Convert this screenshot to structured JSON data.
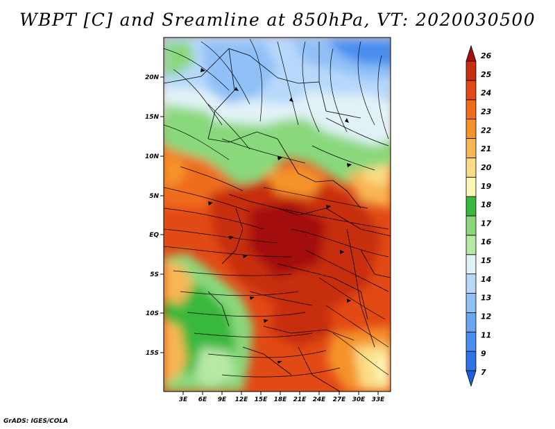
{
  "title": "WBPT [C] and Sreamline at 850hPa, VT: 2020030500",
  "credit": "GrADS: IGES/COLA",
  "map": {
    "field": "WBPT [C]",
    "level": "850hPa",
    "valid_time": "2020030500",
    "lat_labels": [
      "20N",
      "15N",
      "10N",
      "5N",
      "EQ",
      "5S",
      "10S",
      "15S"
    ],
    "lon_labels": [
      "3E",
      "6E",
      "9E",
      "12E",
      "15E",
      "18E",
      "21E",
      "24E",
      "27E",
      "30E",
      "33E"
    ]
  },
  "colorbar": {
    "labels": [
      "7",
      "9",
      "11",
      "12",
      "13",
      "14",
      "15",
      "16",
      "17",
      "18",
      "19",
      "20",
      "21",
      "22",
      "23",
      "24",
      "25",
      "26"
    ],
    "colors": [
      "#1c5fdd",
      "#2e74e6",
      "#4a8eee",
      "#6aa6f2",
      "#8fc0f7",
      "#b7d8fb",
      "#e1f2f7",
      "#b6e8a6",
      "#8ad87b",
      "#39b83e",
      "#fdf5b4",
      "#fbdc84",
      "#f8b654",
      "#f59329",
      "#ef6c1a",
      "#e24a15",
      "#c72f10",
      "#a40f0a"
    ]
  }
}
